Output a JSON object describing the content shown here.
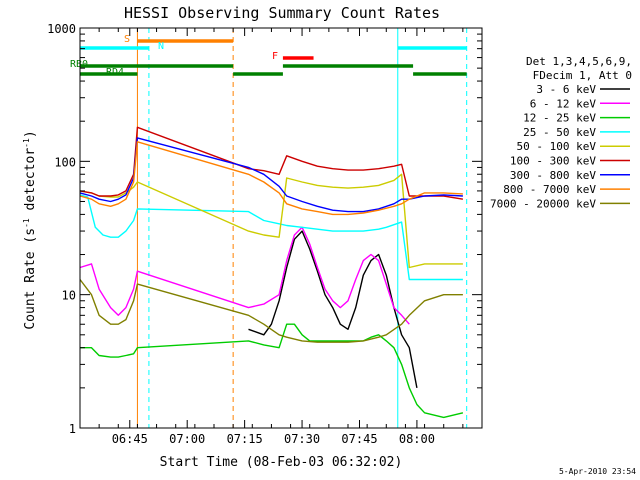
{
  "chart_data": {
    "type": "line",
    "title": "HESSI Observing Summary Count Rates",
    "xlabel": "Start Time (08-Feb-03 06:32:02)",
    "ylabel_main": "Count Rate (s",
    "ylabel_sup": "-1",
    "ylabel_mid": " detector",
    "ylabel_sup2": "-1",
    "ylabel_end": ")",
    "yscale": "log",
    "ylim": [
      1,
      1000
    ],
    "xlim_minutes": [
      0,
      105
    ],
    "x_ticks": [
      {
        "label": "06:45",
        "minute": 13
      },
      {
        "label": "07:00",
        "minute": 28
      },
      {
        "label": "07:15",
        "minute": 43
      },
      {
        "label": "07:30",
        "minute": 58
      },
      {
        "label": "07:45",
        "minute": 73
      },
      {
        "label": "08:00",
        "minute": 88
      }
    ],
    "y_ticks": [
      {
        "label": "1",
        "value": 1
      },
      {
        "label": "10",
        "value": 10
      },
      {
        "label": "100",
        "value": 100
      },
      {
        "label": "1000",
        "value": 1000
      }
    ],
    "legend_header": [
      "Det 1,3,4,5,6,9,",
      "FDecim 1, Att 0"
    ],
    "legend_position": "right",
    "flags": [
      {
        "label": "S",
        "color": "#ff8000",
        "segments": [
          [
            15,
            40
          ]
        ]
      },
      {
        "label": "N",
        "color": "#00ffff",
        "segments": [
          [
            0,
            18
          ],
          [
            83,
            101
          ]
        ]
      },
      {
        "label": "F",
        "color": "#ff0000",
        "segments": [
          [
            53,
            61
          ]
        ]
      },
      {
        "label": "RB0",
        "color": "#008000",
        "segments": [
          [
            0,
            40
          ],
          [
            53,
            87
          ]
        ]
      },
      {
        "label": "RD4",
        "color": "#008000",
        "segments": [
          [
            0,
            15
          ],
          [
            40,
            53
          ],
          [
            87,
            101
          ]
        ]
      }
    ],
    "vlines": [
      {
        "minute": 0,
        "color": "#00ffff",
        "style": "solid"
      },
      {
        "minute": 15,
        "color": "#ff8000",
        "style": "solid"
      },
      {
        "minute": 18,
        "color": "#00ffff",
        "style": "dashed"
      },
      {
        "minute": 40,
        "color": "#ff8000",
        "style": "dashed"
      },
      {
        "minute": 83,
        "color": "#00ffff",
        "style": "solid"
      },
      {
        "minute": 101,
        "color": "#00ffff",
        "style": "dashed"
      }
    ],
    "series": [
      {
        "name": "3 - 6 keV",
        "color": "#000000",
        "points": [
          [
            44,
            5.5
          ],
          [
            48,
            5
          ],
          [
            50,
            6
          ],
          [
            52,
            9
          ],
          [
            54,
            16
          ],
          [
            56,
            26
          ],
          [
            58,
            30
          ],
          [
            60,
            22
          ],
          [
            62,
            15
          ],
          [
            64,
            10
          ],
          [
            66,
            8
          ],
          [
            68,
            6
          ],
          [
            70,
            5.5
          ],
          [
            72,
            8
          ],
          [
            74,
            14
          ],
          [
            76,
            18
          ],
          [
            78,
            20
          ],
          [
            80,
            14
          ],
          [
            82,
            8
          ],
          [
            84,
            5
          ],
          [
            86,
            4
          ],
          [
            88,
            2
          ]
        ]
      },
      {
        "name": "6 - 12 keV",
        "color": "#ff00ff",
        "points": [
          [
            0,
            16
          ],
          [
            3,
            17
          ],
          [
            5,
            11
          ],
          [
            8,
            8
          ],
          [
            10,
            7
          ],
          [
            12,
            8
          ],
          [
            14,
            11
          ],
          [
            15,
            15
          ],
          [
            44,
            8
          ],
          [
            48,
            8.5
          ],
          [
            52,
            10
          ],
          [
            54,
            18
          ],
          [
            56,
            28
          ],
          [
            58,
            32
          ],
          [
            60,
            24
          ],
          [
            62,
            16
          ],
          [
            64,
            11
          ],
          [
            66,
            9
          ],
          [
            68,
            8
          ],
          [
            70,
            9
          ],
          [
            72,
            13
          ],
          [
            74,
            18
          ],
          [
            76,
            20
          ],
          [
            78,
            18
          ],
          [
            80,
            12
          ],
          [
            82,
            8
          ],
          [
            84,
            7
          ],
          [
            86,
            6
          ]
        ]
      },
      {
        "name": "12 - 25 keV",
        "color": "#00cc00",
        "points": [
          [
            0,
            4
          ],
          [
            3,
            4
          ],
          [
            5,
            3.5
          ],
          [
            8,
            3.4
          ],
          [
            10,
            3.4
          ],
          [
            12,
            3.5
          ],
          [
            14,
            3.6
          ],
          [
            15,
            4
          ],
          [
            44,
            4.5
          ],
          [
            48,
            4.2
          ],
          [
            52,
            4
          ],
          [
            54,
            6
          ],
          [
            56,
            6
          ],
          [
            58,
            5
          ],
          [
            60,
            4.5
          ],
          [
            62,
            4.5
          ],
          [
            64,
            4.5
          ],
          [
            66,
            4.5
          ],
          [
            68,
            4.5
          ],
          [
            70,
            4.5
          ],
          [
            72,
            4.5
          ],
          [
            74,
            4.5
          ],
          [
            76,
            4.8
          ],
          [
            78,
            5
          ],
          [
            80,
            4.5
          ],
          [
            82,
            4
          ],
          [
            84,
            3
          ],
          [
            86,
            2
          ],
          [
            88,
            1.5
          ],
          [
            90,
            1.3
          ],
          [
            95,
            1.2
          ],
          [
            100,
            1.3
          ]
        ]
      },
      {
        "name": "25 - 50 keV",
        "color": "#00ffff",
        "points": [
          [
            0,
            56
          ],
          [
            2,
            54
          ],
          [
            4,
            32
          ],
          [
            6,
            28
          ],
          [
            8,
            27
          ],
          [
            10,
            27
          ],
          [
            12,
            30
          ],
          [
            14,
            36
          ],
          [
            15,
            44
          ],
          [
            44,
            42
          ],
          [
            48,
            36
          ],
          [
            52,
            34
          ],
          [
            54,
            33
          ],
          [
            58,
            32
          ],
          [
            62,
            31
          ],
          [
            66,
            30
          ],
          [
            70,
            30
          ],
          [
            74,
            30
          ],
          [
            78,
            31
          ],
          [
            80,
            32
          ],
          [
            84,
            35
          ],
          [
            86,
            13
          ],
          [
            90,
            13
          ],
          [
            95,
            13
          ],
          [
            100,
            13
          ]
        ]
      },
      {
        "name": "50 - 100 keV",
        "color": "#cccc00",
        "points": [
          [
            0,
            60
          ],
          [
            3,
            58
          ],
          [
            5,
            55
          ],
          [
            8,
            54
          ],
          [
            10,
            54
          ],
          [
            12,
            58
          ],
          [
            14,
            64
          ],
          [
            15,
            70
          ],
          [
            44,
            30
          ],
          [
            48,
            28
          ],
          [
            52,
            27
          ],
          [
            54,
            75
          ],
          [
            58,
            70
          ],
          [
            62,
            66
          ],
          [
            66,
            64
          ],
          [
            70,
            63
          ],
          [
            74,
            64
          ],
          [
            78,
            66
          ],
          [
            82,
            72
          ],
          [
            84,
            80
          ],
          [
            86,
            16
          ],
          [
            90,
            17
          ],
          [
            95,
            17
          ],
          [
            100,
            17
          ]
        ]
      },
      {
        "name": "100 - 300 keV",
        "color": "#cc0000",
        "points": [
          [
            0,
            60
          ],
          [
            3,
            58
          ],
          [
            5,
            55
          ],
          [
            8,
            55
          ],
          [
            10,
            56
          ],
          [
            12,
            60
          ],
          [
            14,
            80
          ],
          [
            15,
            180
          ],
          [
            44,
            88
          ],
          [
            48,
            85
          ],
          [
            52,
            80
          ],
          [
            54,
            110
          ],
          [
            58,
            100
          ],
          [
            62,
            92
          ],
          [
            66,
            88
          ],
          [
            70,
            86
          ],
          [
            74,
            86
          ],
          [
            78,
            88
          ],
          [
            82,
            92
          ],
          [
            84,
            95
          ],
          [
            86,
            55
          ],
          [
            90,
            55
          ],
          [
            95,
            55
          ],
          [
            100,
            52
          ]
        ]
      },
      {
        "name": "300 - 800 keV",
        "color": "#0000ff",
        "points": [
          [
            0,
            58
          ],
          [
            3,
            55
          ],
          [
            5,
            52
          ],
          [
            8,
            50
          ],
          [
            10,
            52
          ],
          [
            12,
            56
          ],
          [
            14,
            75
          ],
          [
            15,
            150
          ],
          [
            44,
            90
          ],
          [
            48,
            80
          ],
          [
            52,
            65
          ],
          [
            54,
            55
          ],
          [
            58,
            50
          ],
          [
            62,
            46
          ],
          [
            66,
            43
          ],
          [
            70,
            42
          ],
          [
            74,
            42
          ],
          [
            78,
            44
          ],
          [
            82,
            48
          ],
          [
            84,
            52
          ],
          [
            86,
            52
          ],
          [
            90,
            55
          ],
          [
            95,
            56
          ],
          [
            100,
            55
          ]
        ]
      },
      {
        "name": "800 - 7000 keV",
        "color": "#ff8000",
        "points": [
          [
            0,
            55
          ],
          [
            3,
            52
          ],
          [
            5,
            48
          ],
          [
            8,
            46
          ],
          [
            10,
            48
          ],
          [
            12,
            52
          ],
          [
            14,
            70
          ],
          [
            15,
            140
          ],
          [
            44,
            80
          ],
          [
            48,
            70
          ],
          [
            52,
            58
          ],
          [
            54,
            48
          ],
          [
            58,
            44
          ],
          [
            62,
            42
          ],
          [
            66,
            40
          ],
          [
            70,
            40
          ],
          [
            74,
            41
          ],
          [
            78,
            43
          ],
          [
            82,
            46
          ],
          [
            84,
            48
          ],
          [
            86,
            52
          ],
          [
            90,
            58
          ],
          [
            95,
            58
          ],
          [
            100,
            57
          ]
        ]
      },
      {
        "name": "7000 - 20000 keV",
        "color": "#808000",
        "points": [
          [
            0,
            13
          ],
          [
            3,
            10
          ],
          [
            5,
            7
          ],
          [
            8,
            6
          ],
          [
            10,
            6
          ],
          [
            12,
            6.5
          ],
          [
            14,
            9
          ],
          [
            15,
            12
          ],
          [
            44,
            7
          ],
          [
            48,
            6
          ],
          [
            52,
            5
          ],
          [
            54,
            4.8
          ],
          [
            58,
            4.5
          ],
          [
            62,
            4.4
          ],
          [
            66,
            4.4
          ],
          [
            70,
            4.4
          ],
          [
            74,
            4.5
          ],
          [
            78,
            4.8
          ],
          [
            80,
            5
          ],
          [
            84,
            6
          ],
          [
            86,
            7
          ],
          [
            90,
            9
          ],
          [
            95,
            10
          ],
          [
            100,
            10
          ]
        ]
      }
    ]
  },
  "timestamp": "5-Apr-2010 23:54"
}
